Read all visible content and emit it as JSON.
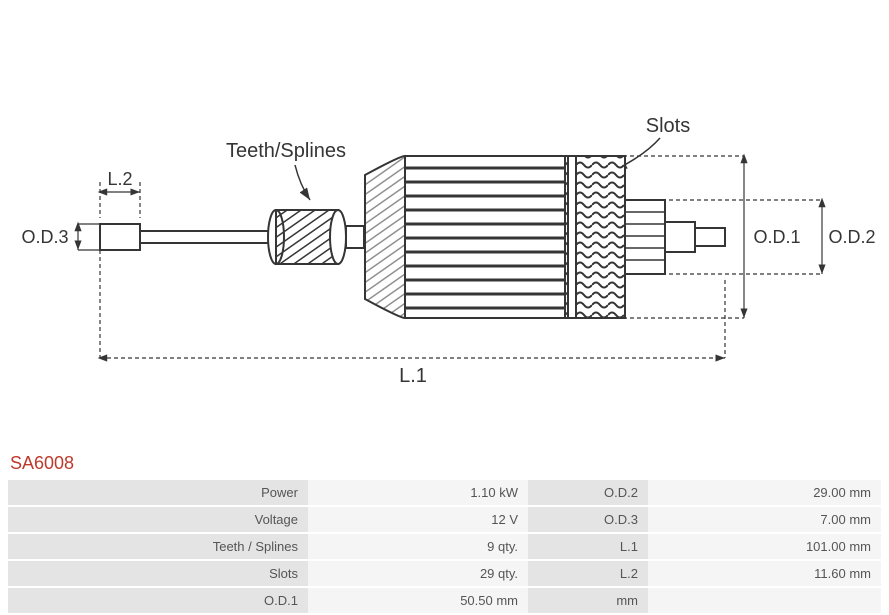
{
  "product_code": "SA6008",
  "diagram_labels": {
    "teeth": "Teeth/Splines",
    "slots": "Slots",
    "l1": "L.1",
    "l2": "L.2",
    "od1": "O.D.1",
    "od2": "O.D.2",
    "od3": "O.D.3"
  },
  "spec_rows": [
    {
      "label": "Power",
      "value": "1.10 kW",
      "label2": "O.D.2",
      "value2": "29.00 mm"
    },
    {
      "label": "Voltage",
      "value": "12 V",
      "label2": "O.D.3",
      "value2": "7.00 mm"
    },
    {
      "label": "Teeth / Splines",
      "value": "9 qty.",
      "label2": "L.1",
      "value2": "101.00 mm"
    },
    {
      "label": "Slots",
      "value": "29 qty.",
      "label2": "L.2",
      "value2": "11.60 mm"
    },
    {
      "label": "O.D.1",
      "value": "50.50 mm",
      "label2": "mm",
      "value2": ""
    }
  ],
  "colors": {
    "stroke": "#353535",
    "stroke_light": "#595959",
    "fill_shaft": "#ffffff",
    "fill_core_stripe": "#ffffff",
    "fill_dark": "#404040",
    "label_text": "#353535",
    "row_dark": "#e4e4e4",
    "row_light": "#f5f5f5",
    "code_color": "#c0392b"
  },
  "font": {
    "label_size": 18,
    "table_size": 13
  }
}
